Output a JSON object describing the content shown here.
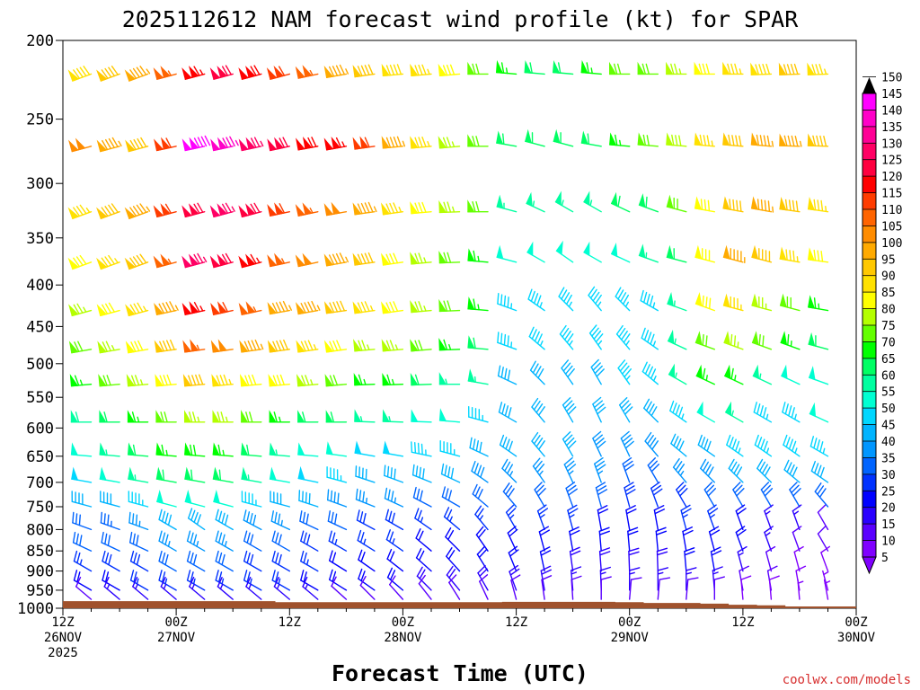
{
  "title": "2025112612 NAM forecast wind profile (kt) for SPAR",
  "xlabel": "Forecast Time (UTC)",
  "credit": "coolwx.com/models",
  "chart_data": {
    "type": "wind-barb-timeseries",
    "title": "2025112612 NAM forecast wind profile (kt) for SPAR",
    "xlabel": "Forecast Time (UTC)",
    "ylabel": "",
    "y_axis": {
      "scale": "log",
      "reversed": true,
      "range": [
        200,
        1000
      ],
      "ticks": [
        200,
        250,
        300,
        350,
        400,
        450,
        500,
        550,
        600,
        650,
        700,
        750,
        800,
        850,
        900,
        950,
        1000
      ]
    },
    "x_axis": {
      "range_hours": [
        0,
        84
      ],
      "ticks": [
        {
          "hour": 0,
          "lines": [
            "12Z",
            "26NOV",
            "2025"
          ]
        },
        {
          "hour": 12,
          "lines": [
            "00Z",
            "27NOV"
          ]
        },
        {
          "hour": 24,
          "lines": [
            "12Z"
          ]
        },
        {
          "hour": 36,
          "lines": [
            "00Z",
            "28NOV"
          ]
        },
        {
          "hour": 48,
          "lines": [
            "12Z"
          ]
        },
        {
          "hour": 60,
          "lines": [
            "00Z",
            "29NOV"
          ]
        },
        {
          "hour": 72,
          "lines": [
            "12Z"
          ]
        },
        {
          "hour": 84,
          "lines": [
            "00Z",
            "30NOV"
          ]
        }
      ]
    },
    "colorbar": {
      "label_unit": "kt",
      "ticks": [
        5,
        10,
        15,
        20,
        25,
        30,
        35,
        40,
        45,
        50,
        55,
        60,
        65,
        70,
        75,
        80,
        85,
        90,
        95,
        100,
        105,
        110,
        115,
        120,
        125,
        130,
        135,
        140,
        145,
        150
      ],
      "colors": [
        "#8000ff",
        "#5a00ff",
        "#2a00ff",
        "#0000ff",
        "#0032ff",
        "#0064ff",
        "#0096ff",
        "#00b4ff",
        "#00d7ff",
        "#00ffd2",
        "#00ffa0",
        "#00ff64",
        "#00ff00",
        "#64ff00",
        "#b4ff00",
        "#ffff00",
        "#ffe100",
        "#ffc800",
        "#ffaa00",
        "#ff8c00",
        "#ff6400",
        "#ff3c00",
        "#ff0000",
        "#ff0040",
        "#ff0064",
        "#ff0096",
        "#ff00c8",
        "#ff00ff"
      ]
    },
    "levels_hpa": [
      220,
      270,
      325,
      375,
      430,
      480,
      530,
      590,
      650,
      700,
      750,
      800,
      850,
      900,
      950,
      975
    ],
    "times_hours": [
      0,
      3,
      6,
      9,
      12,
      15,
      18,
      21,
      24,
      27,
      30,
      33,
      36,
      39,
      42,
      45,
      48,
      51,
      54,
      57,
      60,
      63,
      66,
      69,
      72,
      75,
      78,
      81,
      84
    ],
    "wind_speed_kt": [
      [
        90,
        88,
        92,
        95,
        105,
        115,
        120,
        118,
        110,
        105,
        95,
        90,
        88,
        85,
        80,
        70,
        65,
        60,
        62,
        65,
        70,
        72,
        75,
        80,
        85,
        88,
        90,
        85,
        80
      ],
      [
        95,
        100,
        95,
        90,
        110,
        140,
        135,
        125,
        120,
        118,
        115,
        110,
        95,
        85,
        75,
        70,
        60,
        60,
        60,
        62,
        65,
        70,
        78,
        85,
        90,
        95,
        95,
        90,
        85
      ],
      [
        85,
        85,
        90,
        95,
        110,
        120,
        125,
        120,
        110,
        105,
        100,
        95,
        85,
        80,
        75,
        70,
        55,
        55,
        55,
        55,
        60,
        60,
        70,
        80,
        90,
        95,
        90,
        85,
        80
      ],
      [
        75,
        80,
        85,
        90,
        105,
        125,
        120,
        115,
        105,
        100,
        95,
        90,
        80,
        75,
        70,
        65,
        50,
        50,
        50,
        50,
        52,
        55,
        60,
        80,
        95,
        90,
        85,
        80,
        75
      ],
      [
        70,
        75,
        80,
        85,
        95,
        115,
        110,
        105,
        95,
        95,
        90,
        85,
        80,
        75,
        70,
        65,
        45,
        45,
        45,
        45,
        45,
        45,
        55,
        80,
        85,
        75,
        70,
        65,
        60
      ],
      [
        65,
        70,
        75,
        80,
        90,
        105,
        100,
        95,
        90,
        85,
        80,
        75,
        75,
        70,
        65,
        60,
        45,
        45,
        45,
        45,
        45,
        45,
        55,
        70,
        75,
        70,
        65,
        60,
        60
      ],
      [
        60,
        65,
        70,
        75,
        80,
        90,
        85,
        80,
        80,
        75,
        70,
        65,
        65,
        60,
        55,
        55,
        42,
        42,
        42,
        42,
        45,
        45,
        55,
        65,
        65,
        55,
        50,
        50,
        55
      ],
      [
        55,
        58,
        62,
        65,
        70,
        75,
        75,
        70,
        65,
        60,
        60,
        55,
        55,
        52,
        50,
        45,
        40,
        40,
        40,
        40,
        40,
        40,
        45,
        50,
        55,
        45,
        45,
        50,
        50
      ],
      [
        50,
        52,
        55,
        60,
        65,
        68,
        65,
        60,
        55,
        52,
        50,
        48,
        48,
        46,
        45,
        42,
        40,
        40,
        40,
        38,
        38,
        38,
        40,
        42,
        45,
        45,
        45,
        45,
        45
      ],
      [
        45,
        48,
        50,
        55,
        60,
        62,
        60,
        55,
        50,
        48,
        45,
        42,
        42,
        40,
        40,
        38,
        35,
        35,
        35,
        35,
        32,
        32,
        35,
        38,
        40,
        40,
        40,
        40,
        40
      ],
      [
        38,
        40,
        42,
        45,
        50,
        52,
        50,
        45,
        42,
        40,
        38,
        35,
        35,
        32,
        32,
        30,
        30,
        30,
        30,
        30,
        28,
        28,
        28,
        30,
        30,
        30,
        30,
        30,
        30
      ],
      [
        30,
        32,
        33,
        35,
        40,
        42,
        40,
        38,
        35,
        32,
        30,
        28,
        28,
        25,
        25,
        25,
        25,
        25,
        25,
        22,
        22,
        22,
        25,
        25,
        20,
        15,
        15,
        10,
        10
      ],
      [
        28,
        30,
        30,
        32,
        35,
        35,
        35,
        32,
        30,
        28,
        25,
        25,
        25,
        22,
        22,
        22,
        22,
        22,
        20,
        20,
        20,
        20,
        22,
        22,
        20,
        15,
        10,
        10,
        8
      ],
      [
        25,
        26,
        28,
        28,
        30,
        30,
        30,
        28,
        28,
        25,
        22,
        22,
        22,
        20,
        20,
        20,
        20,
        20,
        18,
        18,
        18,
        18,
        20,
        20,
        15,
        10,
        8,
        8,
        5
      ],
      [
        20,
        22,
        22,
        25,
        25,
        25,
        25,
        25,
        25,
        22,
        20,
        20,
        20,
        18,
        18,
        18,
        18,
        18,
        15,
        15,
        15,
        15,
        15,
        15,
        12,
        10,
        8,
        5,
        5
      ],
      [
        12,
        12,
        15,
        15,
        15,
        15,
        15,
        15,
        15,
        15,
        12,
        12,
        12,
        12,
        12,
        12,
        12,
        12,
        10,
        10,
        10,
        10,
        10,
        10,
        8,
        8,
        5,
        5,
        5
      ]
    ],
    "wind_dir_deg": [
      [
        250,
        250,
        250,
        250,
        255,
        255,
        255,
        255,
        255,
        258,
        260,
        262,
        265,
        265,
        265,
        270,
        275,
        275,
        275,
        275,
        270,
        270,
        270,
        270,
        270,
        268,
        268,
        268,
        270
      ],
      [
        255,
        255,
        255,
        255,
        258,
        258,
        258,
        258,
        258,
        260,
        260,
        262,
        265,
        265,
        265,
        270,
        280,
        285,
        285,
        280,
        275,
        275,
        275,
        275,
        275,
        275,
        272,
        272,
        270
      ],
      [
        250,
        250,
        250,
        250,
        255,
        255,
        255,
        255,
        258,
        258,
        260,
        262,
        262,
        265,
        268,
        270,
        285,
        295,
        300,
        300,
        295,
        290,
        285,
        280,
        280,
        280,
        278,
        278,
        275
      ],
      [
        250,
        250,
        250,
        250,
        255,
        255,
        255,
        255,
        258,
        258,
        260,
        262,
        262,
        265,
        268,
        275,
        285,
        300,
        305,
        300,
        295,
        290,
        285,
        285,
        285,
        285,
        280,
        278,
        275
      ],
      [
        255,
        255,
        255,
        255,
        258,
        258,
        258,
        258,
        260,
        260,
        262,
        262,
        262,
        265,
        268,
        275,
        290,
        305,
        315,
        320,
        315,
        300,
        290,
        290,
        285,
        285,
        285,
        280,
        280
      ],
      [
        260,
        260,
        260,
        260,
        262,
        262,
        262,
        262,
        262,
        262,
        262,
        265,
        265,
        265,
        268,
        275,
        290,
        310,
        320,
        325,
        320,
        305,
        295,
        290,
        290,
        290,
        290,
        285,
        285
      ],
      [
        265,
        265,
        265,
        265,
        265,
        265,
        265,
        265,
        265,
        265,
        265,
        268,
        268,
        268,
        270,
        280,
        295,
        315,
        325,
        330,
        325,
        310,
        300,
        295,
        295,
        295,
        295,
        290,
        290
      ],
      [
        270,
        270,
        270,
        270,
        270,
        270,
        270,
        270,
        270,
        270,
        270,
        272,
        272,
        272,
        275,
        285,
        300,
        320,
        330,
        335,
        330,
        315,
        305,
        300,
        300,
        300,
        300,
        295,
        295
      ],
      [
        275,
        275,
        275,
        275,
        275,
        275,
        275,
        275,
        275,
        275,
        278,
        280,
        280,
        282,
        285,
        295,
        305,
        320,
        330,
        335,
        335,
        320,
        310,
        305,
        305,
        305,
        305,
        300,
        300
      ],
      [
        280,
        280,
        280,
        280,
        280,
        280,
        280,
        280,
        280,
        282,
        285,
        288,
        290,
        292,
        295,
        305,
        315,
        325,
        335,
        340,
        340,
        330,
        320,
        315,
        315,
        315,
        310,
        305,
        300
      ],
      [
        285,
        285,
        285,
        285,
        285,
        285,
        285,
        285,
        285,
        288,
        290,
        292,
        295,
        298,
        300,
        310,
        320,
        330,
        340,
        345,
        345,
        340,
        330,
        330,
        330,
        330,
        330,
        320,
        310
      ],
      [
        290,
        290,
        290,
        290,
        300,
        305,
        300,
        298,
        295,
        295,
        295,
        298,
        300,
        305,
        310,
        320,
        330,
        340,
        345,
        350,
        350,
        350,
        345,
        340,
        340,
        340,
        340,
        330,
        300
      ],
      [
        295,
        295,
        295,
        295,
        300,
        300,
        300,
        300,
        300,
        300,
        300,
        302,
        305,
        310,
        315,
        325,
        335,
        345,
        350,
        355,
        355,
        355,
        350,
        345,
        340,
        340,
        340,
        330,
        310
      ],
      [
        300,
        300,
        300,
        300,
        300,
        300,
        300,
        300,
        300,
        300,
        302,
        305,
        308,
        312,
        318,
        328,
        338,
        348,
        352,
        356,
        358,
        358,
        355,
        350,
        345,
        345,
        345,
        340,
        330
      ],
      [
        300,
        300,
        300,
        300,
        300,
        300,
        300,
        300,
        300,
        300,
        302,
        305,
        310,
        315,
        320,
        330,
        340,
        350,
        355,
        358,
        0,
        0,
        0,
        355,
        350,
        350,
        350,
        345,
        340
      ],
      [
        310,
        310,
        310,
        310,
        310,
        310,
        310,
        310,
        310,
        310,
        312,
        315,
        318,
        322,
        328,
        335,
        345,
        352,
        356,
        0,
        5,
        5,
        5,
        0,
        355,
        355,
        355,
        350,
        345
      ]
    ],
    "terrain_top_hpa": [
      980,
      980,
      980,
      980,
      980,
      980,
      980,
      980,
      983,
      983,
      983,
      983,
      983,
      983,
      983,
      983,
      982,
      982,
      982,
      982,
      983,
      985,
      985,
      987,
      990,
      992,
      995,
      995,
      995
    ]
  }
}
